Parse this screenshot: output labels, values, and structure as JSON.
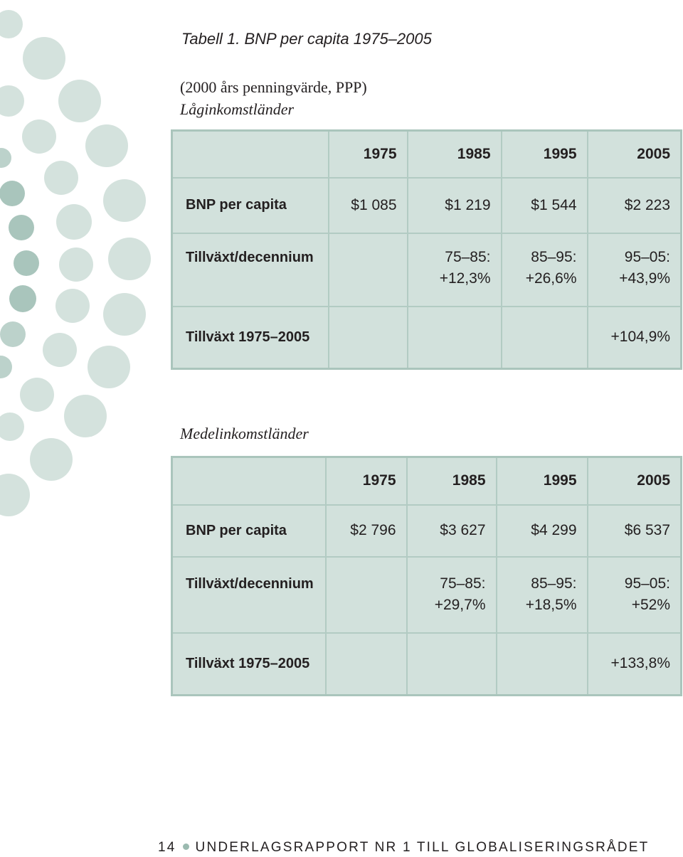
{
  "caption": "Tabell 1. BNP per capita 1975–2005",
  "subtitle": "(2000 års penningvärde, PPP)",
  "tables": [
    {
      "heading": "Låginkomstländer",
      "years": [
        "1975",
        "1985",
        "1995",
        "2005"
      ],
      "rows": [
        {
          "label": "BNP per capita",
          "cells": [
            [
              "$1 085"
            ],
            [
              "$1 219"
            ],
            [
              "$1 544"
            ],
            [
              "$2 223"
            ]
          ]
        },
        {
          "label": "Tillväxt/decennium",
          "cells": [
            [],
            [
              "75–85:",
              "+12,3%"
            ],
            [
              "85–95:",
              "+26,6%"
            ],
            [
              "95–05:",
              "+43,9%"
            ]
          ]
        },
        {
          "label": "Tillväxt 1975–2005",
          "cells": [
            [],
            [],
            [],
            [
              "+104,9%"
            ]
          ]
        }
      ]
    },
    {
      "heading": "Medelinkomstländer",
      "years": [
        "1975",
        "1985",
        "1995",
        "2005"
      ],
      "rows": [
        {
          "label": "BNP per capita",
          "cells": [
            [
              "$2 796"
            ],
            [
              "$3 627"
            ],
            [
              "$4 299"
            ],
            [
              "$6 537"
            ]
          ]
        },
        {
          "label": "Tillväxt/decennium",
          "cells": [
            [],
            [
              "75–85:",
              "+29,7%"
            ],
            [
              "85–95:",
              "+18,5%"
            ],
            [
              "95–05:",
              "+52%"
            ]
          ]
        },
        {
          "label": "Tillväxt 1975–2005",
          "cells": [
            [],
            [],
            [],
            [
              "+133,8%"
            ]
          ]
        }
      ]
    }
  ],
  "footer": {
    "page_number": "14",
    "text": "UNDERLAGSRAPPORT NR 1 TILL GLOBALISERINGSRÅDET"
  }
}
